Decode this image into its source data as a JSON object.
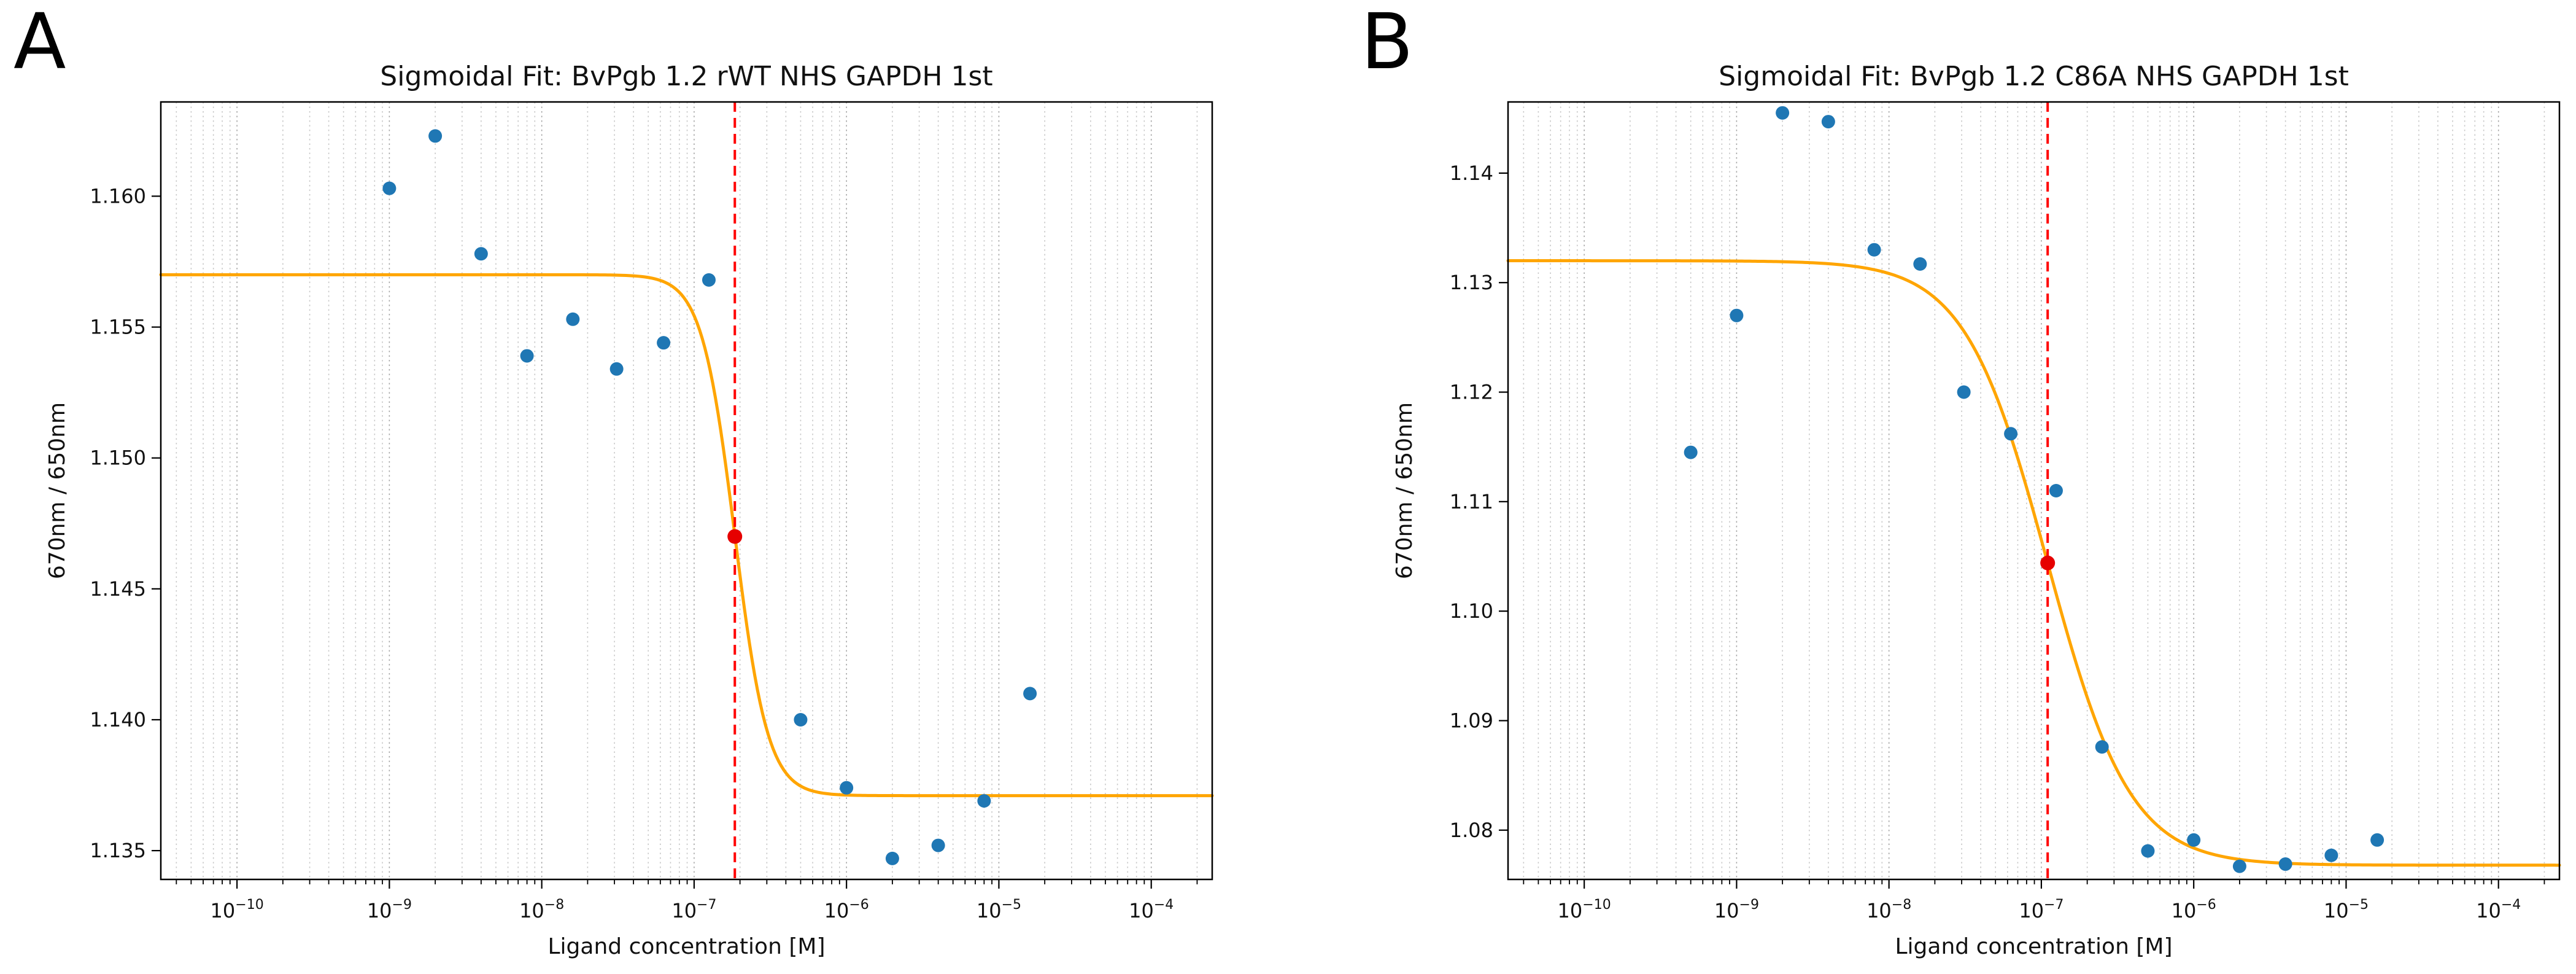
{
  "panel_labels": [
    "A",
    "B"
  ],
  "chart_data": [
    {
      "type": "scatter",
      "title": "Sigmoidal Fit: BvPgb 1.2 rWT NHS GAPDH 1st",
      "xlabel": "Ligand concentration [M]",
      "ylabel": "670nm / 650nm",
      "x_scale": "log",
      "xlim_log10": [
        -10.5,
        -3.6
      ],
      "ylim": [
        1.1339,
        1.1636
      ],
      "xtick_exponents": [
        -10,
        -9,
        -8,
        -7,
        -6,
        -5,
        -4
      ],
      "yticks": [
        1.135,
        1.14,
        1.145,
        1.15,
        1.155,
        1.16
      ],
      "ytick_decimals": 3,
      "grid": {
        "axis": "x",
        "which": "both",
        "style": "dotted"
      },
      "points": [
        {
          "x": 1e-09,
          "y": 1.1603
        },
        {
          "x": 2e-09,
          "y": 1.1623
        },
        {
          "x": 4e-09,
          "y": 1.1578
        },
        {
          "x": 8e-09,
          "y": 1.1539
        },
        {
          "x": 1.6e-08,
          "y": 1.1553
        },
        {
          "x": 3.1e-08,
          "y": 1.1534
        },
        {
          "x": 6.3e-08,
          "y": 1.1544
        },
        {
          "x": 1.25e-07,
          "y": 1.1568
        },
        {
          "x": 5e-07,
          "y": 1.14
        },
        {
          "x": 1e-06,
          "y": 1.1374
        },
        {
          "x": 2e-06,
          "y": 1.1347
        },
        {
          "x": 4e-06,
          "y": 1.1352
        },
        {
          "x": 8e-06,
          "y": 1.1369
        },
        {
          "x": 1.6e-05,
          "y": 1.141
        }
      ],
      "fit": {
        "top": 1.157,
        "bottom": 1.1371,
        "ec50": 1.85e-07,
        "hill": 4.0
      },
      "ec50_marker": {
        "x": 1.85e-07,
        "y": 1.147
      },
      "colors": {
        "points": "#1f77b4",
        "curve": "#ffa500",
        "ec50_line": "#ff0000",
        "ec50_marker": "#e60000",
        "grid_major": "#a6a6a6",
        "grid_minor": "#c9c9c9",
        "spine": "#000000"
      }
    },
    {
      "type": "scatter",
      "title": "Sigmoidal Fit: BvPgb 1.2 C86A NHS GAPDH 1st",
      "xlabel": "Ligand concentration [M]",
      "ylabel": "670nm / 650nm",
      "x_scale": "log",
      "xlim_log10": [
        -10.5,
        -3.6
      ],
      "ylim": [
        1.0755,
        1.1465
      ],
      "xtick_exponents": [
        -10,
        -9,
        -8,
        -7,
        -6,
        -5,
        -4
      ],
      "yticks": [
        1.08,
        1.09,
        1.1,
        1.11,
        1.12,
        1.13,
        1.14
      ],
      "ytick_decimals": 2,
      "grid": {
        "axis": "x",
        "which": "both",
        "style": "dotted"
      },
      "points": [
        {
          "x": 5e-10,
          "y": 1.1145
        },
        {
          "x": 1e-09,
          "y": 1.127
        },
        {
          "x": 2e-09,
          "y": 1.1455
        },
        {
          "x": 4e-09,
          "y": 1.1447
        },
        {
          "x": 8e-09,
          "y": 1.133
        },
        {
          "x": 1.6e-08,
          "y": 1.1317
        },
        {
          "x": 3.1e-08,
          "y": 1.12
        },
        {
          "x": 6.3e-08,
          "y": 1.1162
        },
        {
          "x": 1.25e-07,
          "y": 1.111
        },
        {
          "x": 2.5e-07,
          "y": 1.0876
        },
        {
          "x": 5e-07,
          "y": 1.0781
        },
        {
          "x": 1e-06,
          "y": 1.0791
        },
        {
          "x": 2e-06,
          "y": 1.0767
        },
        {
          "x": 4e-06,
          "y": 1.0769
        },
        {
          "x": 8e-06,
          "y": 1.0777
        },
        {
          "x": 1.6e-05,
          "y": 1.0791
        }
      ],
      "fit": {
        "top": 1.132,
        "bottom": 1.0768,
        "ec50": 1.1e-07,
        "hill": 1.6
      },
      "ec50_marker": {
        "x": 1.1e-07,
        "y": 1.1044
      },
      "colors": {
        "points": "#1f77b4",
        "curve": "#ffa500",
        "ec50_line": "#ff0000",
        "ec50_marker": "#e60000",
        "grid_major": "#a6a6a6",
        "grid_minor": "#c9c9c9",
        "spine": "#000000"
      }
    }
  ]
}
